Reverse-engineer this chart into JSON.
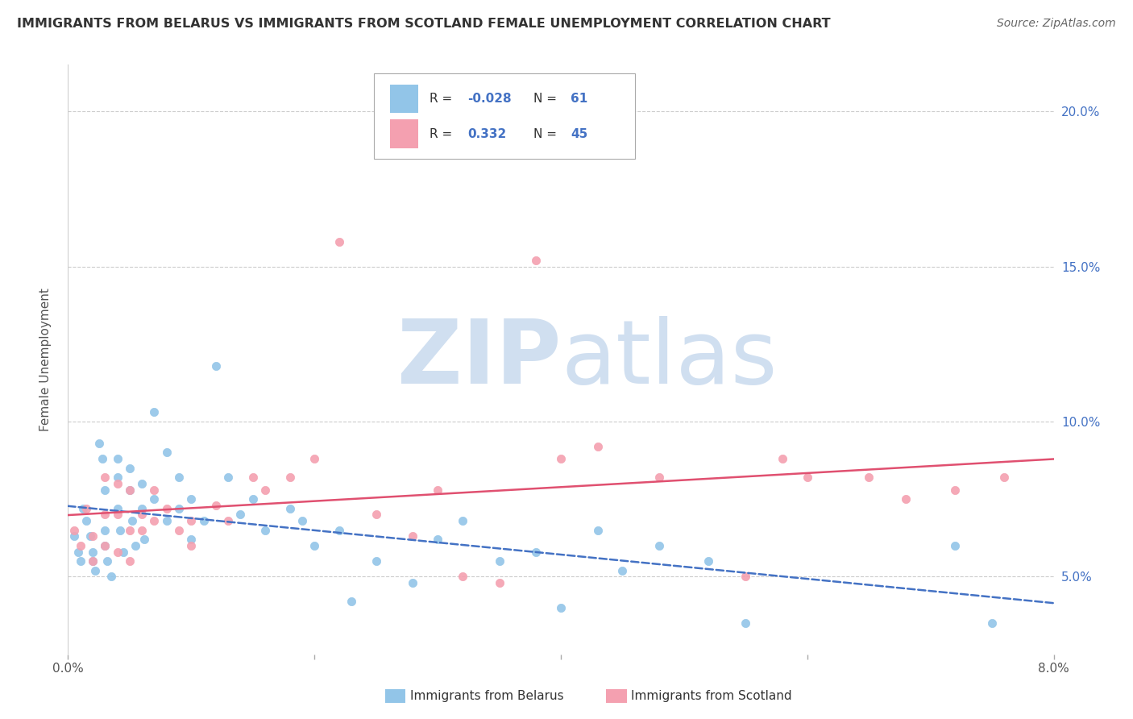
{
  "title": "IMMIGRANTS FROM BELARUS VS IMMIGRANTS FROM SCOTLAND FEMALE UNEMPLOYMENT CORRELATION CHART",
  "source": "Source: ZipAtlas.com",
  "xlabel_belarus": "Immigrants from Belarus",
  "xlabel_scotland": "Immigrants from Scotland",
  "ylabel": "Female Unemployment",
  "xlim": [
    0.0,
    0.08
  ],
  "ylim": [
    0.025,
    0.215
  ],
  "yticks": [
    0.05,
    0.1,
    0.15,
    0.2
  ],
  "ytick_labels": [
    "5.0%",
    "10.0%",
    "15.0%",
    "20.0%"
  ],
  "xticks": [
    0.0,
    0.02,
    0.04,
    0.06,
    0.08
  ],
  "xtick_labels": [
    "0.0%",
    "",
    "",
    "",
    "8.0%"
  ],
  "legend_R_belarus": "-0.028",
  "legend_N_belarus": "61",
  "legend_R_scotland": "0.332",
  "legend_N_scotland": "45",
  "color_belarus": "#92C5E8",
  "color_scotland": "#F4A0B0",
  "color_trendline_belarus": "#4472C4",
  "color_trendline_scotland": "#E05070",
  "watermark_color": "#D0DFF0",
  "background_color": "#FFFFFF",
  "belarus_x": [
    0.0005,
    0.0008,
    0.001,
    0.0012,
    0.0015,
    0.0018,
    0.002,
    0.002,
    0.0022,
    0.0025,
    0.0028,
    0.003,
    0.003,
    0.003,
    0.0032,
    0.0035,
    0.004,
    0.004,
    0.004,
    0.0042,
    0.0045,
    0.005,
    0.005,
    0.0052,
    0.0055,
    0.006,
    0.006,
    0.0062,
    0.007,
    0.007,
    0.008,
    0.008,
    0.009,
    0.009,
    0.01,
    0.01,
    0.011,
    0.012,
    0.013,
    0.014,
    0.015,
    0.016,
    0.018,
    0.019,
    0.02,
    0.022,
    0.023,
    0.025,
    0.028,
    0.03,
    0.032,
    0.035,
    0.038,
    0.04,
    0.043,
    0.045,
    0.048,
    0.052,
    0.055,
    0.072,
    0.075
  ],
  "belarus_y": [
    0.063,
    0.058,
    0.055,
    0.072,
    0.068,
    0.063,
    0.058,
    0.055,
    0.052,
    0.093,
    0.088,
    0.078,
    0.065,
    0.06,
    0.055,
    0.05,
    0.088,
    0.082,
    0.072,
    0.065,
    0.058,
    0.085,
    0.078,
    0.068,
    0.06,
    0.08,
    0.072,
    0.062,
    0.103,
    0.075,
    0.09,
    0.068,
    0.082,
    0.072,
    0.075,
    0.062,
    0.068,
    0.118,
    0.082,
    0.07,
    0.075,
    0.065,
    0.072,
    0.068,
    0.06,
    0.065,
    0.042,
    0.055,
    0.048,
    0.062,
    0.068,
    0.055,
    0.058,
    0.04,
    0.065,
    0.052,
    0.06,
    0.055,
    0.035,
    0.06,
    0.035
  ],
  "scotland_x": [
    0.0005,
    0.001,
    0.0015,
    0.002,
    0.002,
    0.003,
    0.003,
    0.003,
    0.004,
    0.004,
    0.004,
    0.005,
    0.005,
    0.005,
    0.006,
    0.006,
    0.007,
    0.007,
    0.008,
    0.009,
    0.01,
    0.01,
    0.012,
    0.013,
    0.015,
    0.016,
    0.018,
    0.02,
    0.022,
    0.025,
    0.028,
    0.03,
    0.032,
    0.035,
    0.038,
    0.04,
    0.043,
    0.048,
    0.055,
    0.058,
    0.06,
    0.065,
    0.068,
    0.072,
    0.076
  ],
  "scotland_y": [
    0.065,
    0.06,
    0.072,
    0.063,
    0.055,
    0.082,
    0.07,
    0.06,
    0.08,
    0.07,
    0.058,
    0.078,
    0.065,
    0.055,
    0.07,
    0.065,
    0.078,
    0.068,
    0.072,
    0.065,
    0.068,
    0.06,
    0.073,
    0.068,
    0.082,
    0.078,
    0.082,
    0.088,
    0.158,
    0.07,
    0.063,
    0.078,
    0.05,
    0.048,
    0.152,
    0.088,
    0.092,
    0.082,
    0.05,
    0.088,
    0.082,
    0.082,
    0.075,
    0.078,
    0.082
  ]
}
